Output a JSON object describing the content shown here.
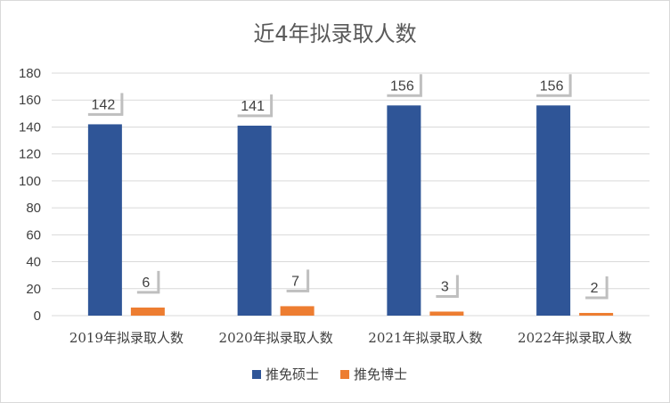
{
  "chart_data": {
    "type": "bar",
    "title": "近4年拟录取人数",
    "categories": [
      "2019年拟录取人数",
      "2020年拟录取人数",
      "2021年拟录取人数",
      "2022年拟录取人数"
    ],
    "series": [
      {
        "name": "推免硕士",
        "values": [
          142,
          141,
          156,
          156
        ],
        "color": "#2f5597"
      },
      {
        "name": "推免博士",
        "values": [
          6,
          7,
          3,
          2
        ],
        "color": "#ed7d31"
      }
    ],
    "ylim": [
      0,
      180
    ],
    "yticks": [
      0,
      20,
      40,
      60,
      80,
      100,
      120,
      140,
      160,
      180
    ],
    "grid": true,
    "legend_position": "bottom",
    "data_labels": true
  }
}
